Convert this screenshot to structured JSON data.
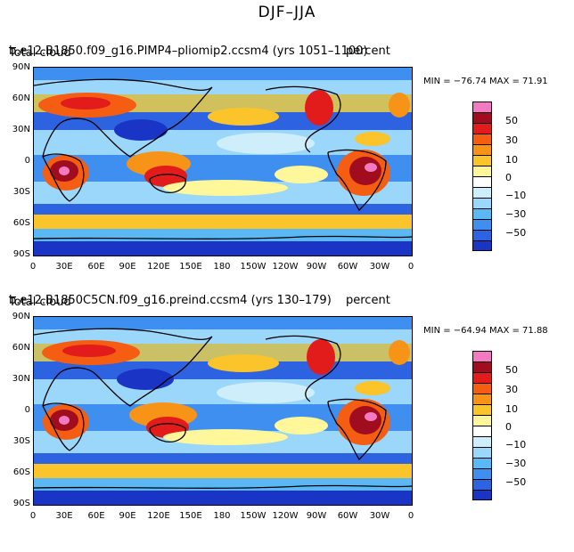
{
  "title": "DJF–JJA",
  "panels": [
    {
      "run_title": "b.e12.B1850.f09_g16.PIMP4–pliomip2.ccsm4 (yrs 1051–1100)",
      "variable": "Total cloud",
      "units": "percent",
      "min_label": "MIN = −76.74  MAX =  71.91"
    },
    {
      "run_title": "b.e12.B1850C5CN.f09_g16.preind.ccsm4 (yrs 130–179)",
      "variable": "Total cloud",
      "units": "percent",
      "min_label": "MIN = −64.94  MAX =  71.88"
    }
  ],
  "lat_labels": [
    "90N",
    "60N",
    "30N",
    "0",
    "30S",
    "60S",
    "90S"
  ],
  "lon_labels": [
    "0",
    "30E",
    "60E",
    "90E",
    "120E",
    "150E",
    "180",
    "150W",
    "120W",
    "90W",
    "60W",
    "30W",
    "0"
  ],
  "colorbar": {
    "labels": [
      "50",
      "30",
      "10",
      "0",
      "−10",
      "−30",
      "−50"
    ],
    "colors": [
      "#f27ac0",
      "#a00d1f",
      "#e21b1b",
      "#f55d13",
      "#f79418",
      "#fac42a",
      "#fff79a",
      "#ffffff",
      "#cfeefc",
      "#9bd7fb",
      "#5ab8f5",
      "#3f8ff0",
      "#2d63e0",
      "#1a34c6",
      "#0b0d9e",
      "#8b2be2"
    ]
  }
}
